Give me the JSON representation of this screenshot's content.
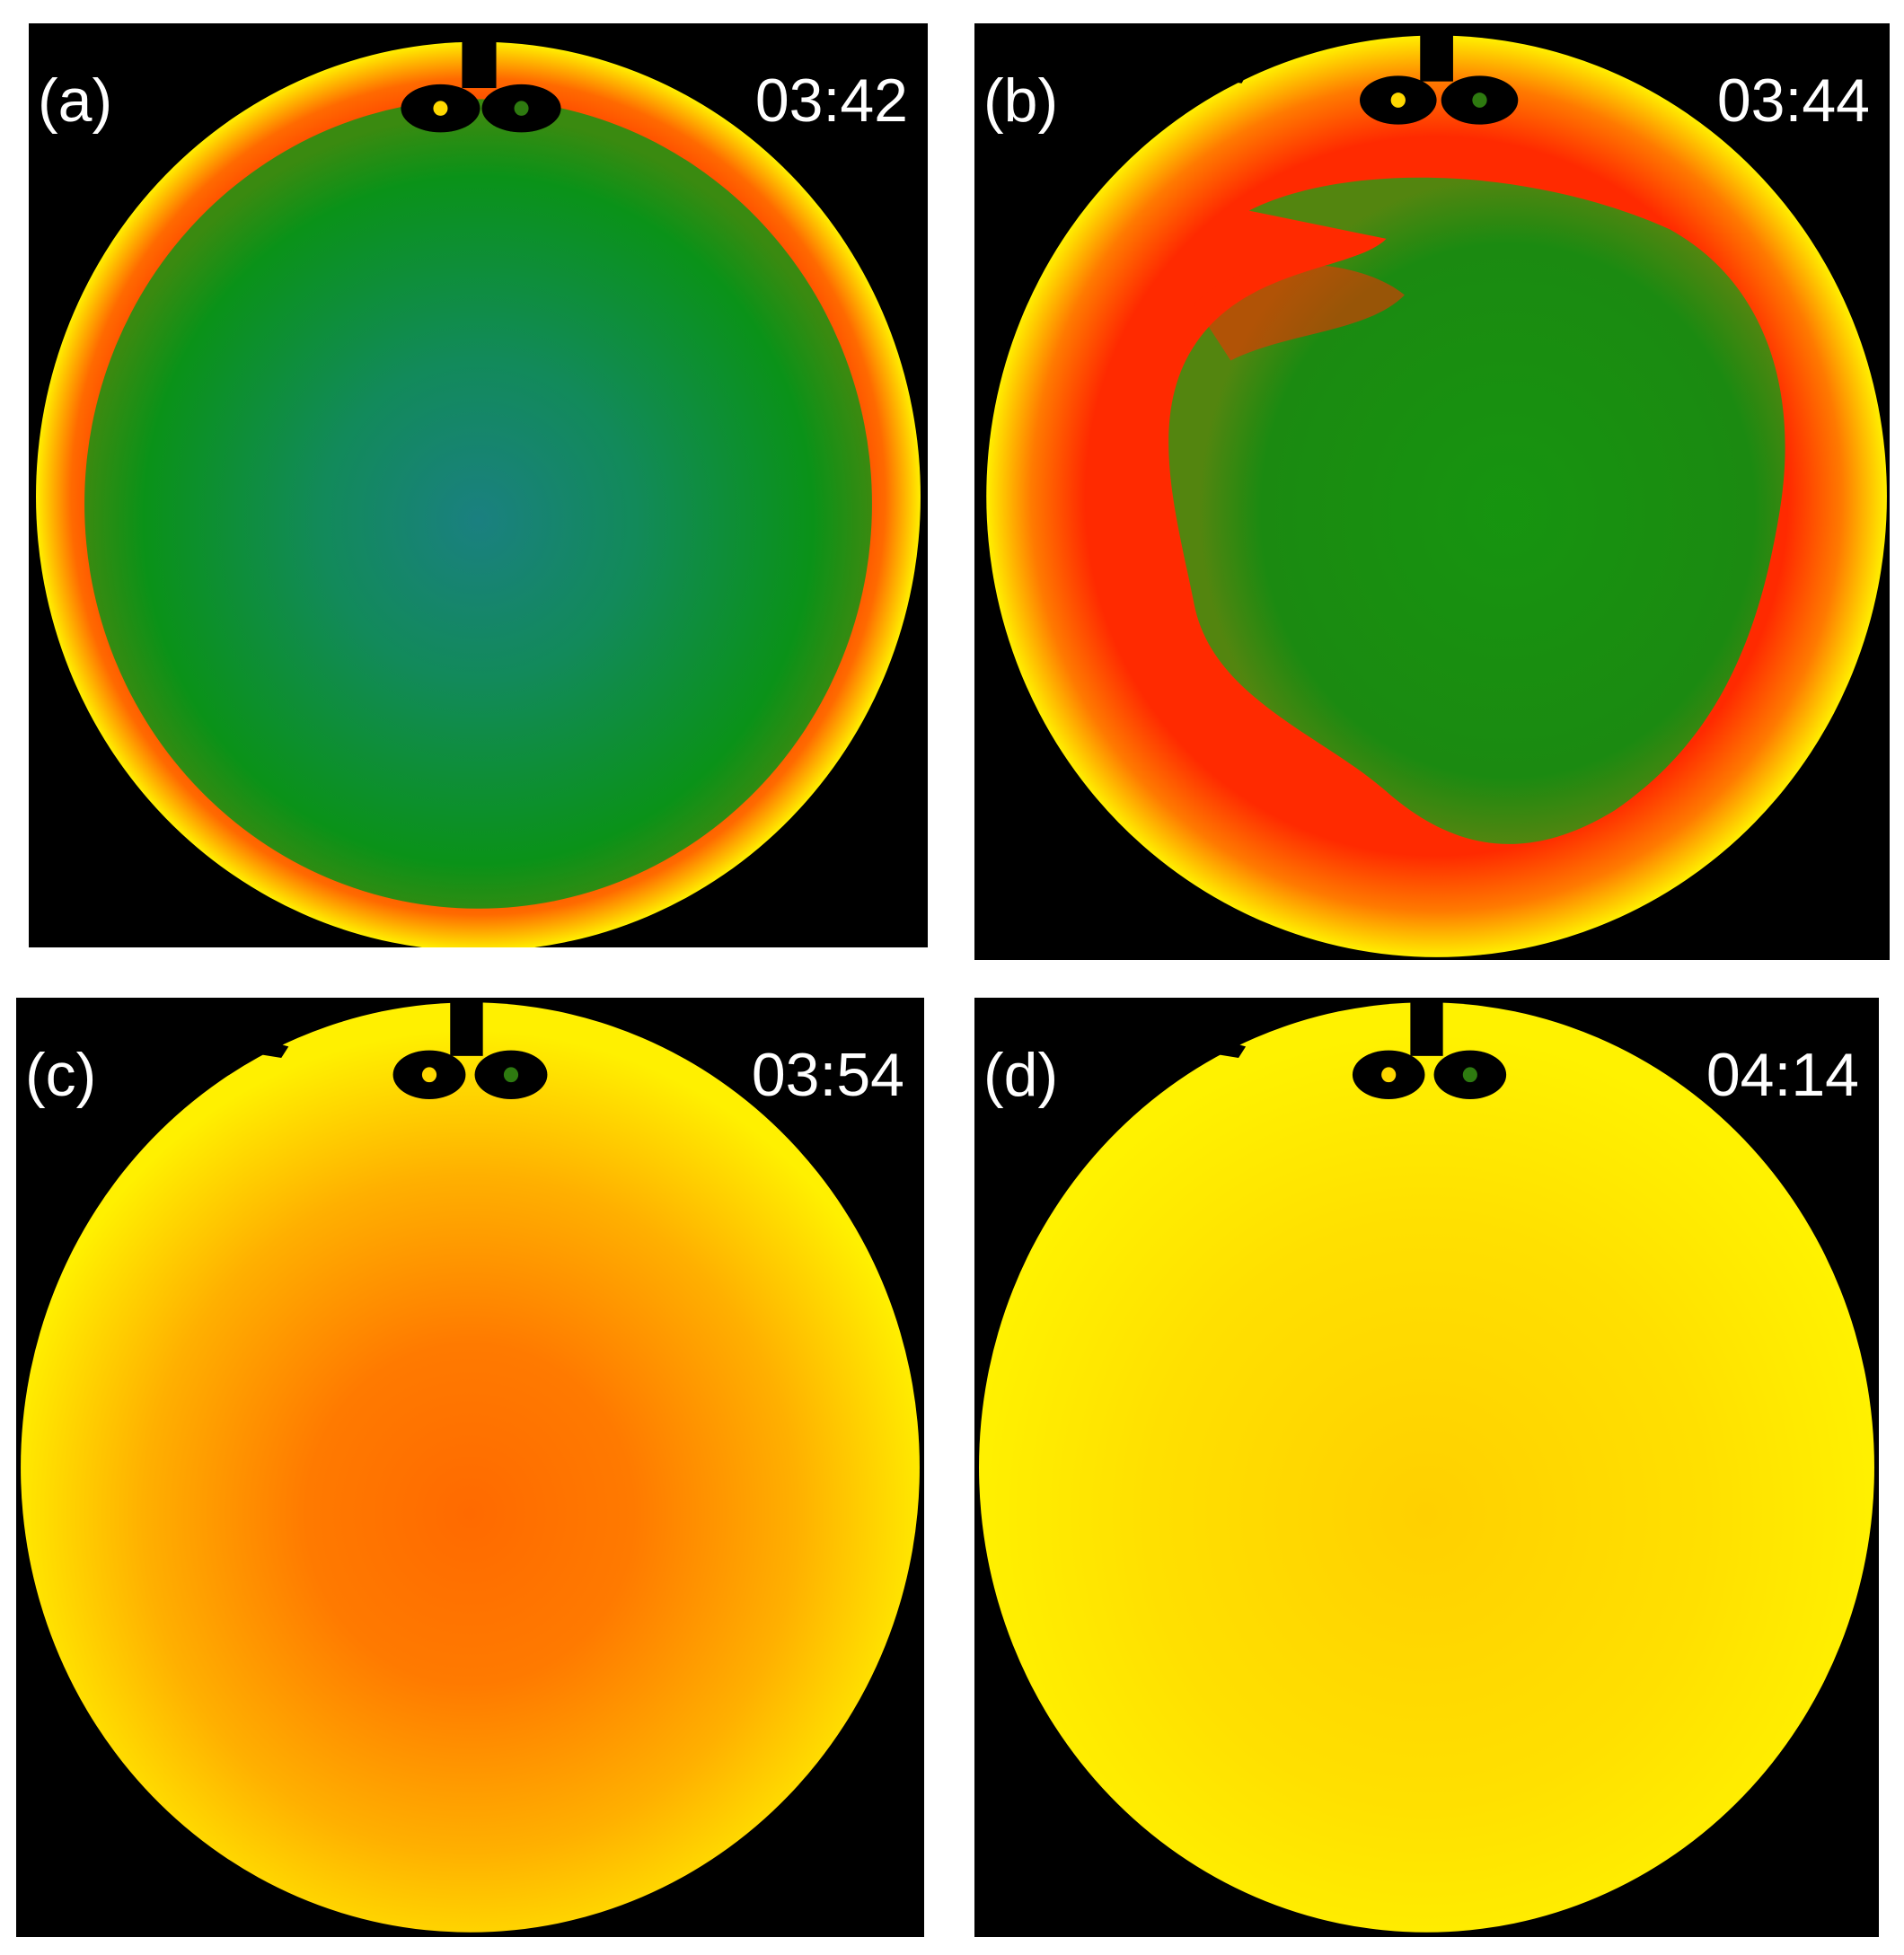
{
  "panels": [
    {
      "label": "(a)",
      "time": "03:42"
    },
    {
      "label": "(b)",
      "time": "03:44"
    },
    {
      "label": "(c)",
      "time": "03:54"
    },
    {
      "label": "(d)",
      "time": "04:14"
    }
  ],
  "colors": {
    "background": "#000000",
    "yellow": "#ffef00",
    "orange": "#ff9a00",
    "red": "#ff2a00",
    "green": "#0a9a10",
    "teal": "#1a8a70",
    "deep_orange": "#ff6a00"
  }
}
